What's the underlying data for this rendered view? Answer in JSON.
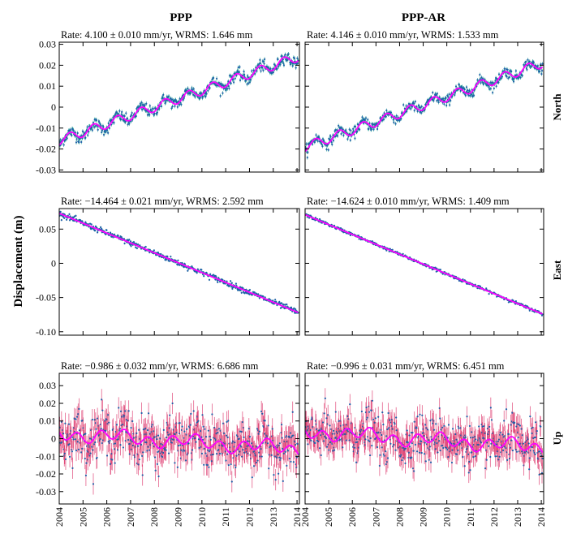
{
  "column_titles": [
    "PPP",
    "PPP-AR"
  ],
  "ylabel": "Displacement (m)",
  "row_labels": [
    "North",
    "East",
    "Up"
  ],
  "x_ticks": [
    "2004",
    "2005",
    "2006",
    "2007",
    "2008",
    "2009",
    "2010",
    "2011",
    "2012",
    "2013",
    "2014"
  ],
  "colors": {
    "points": "#1f5fa8",
    "errorbars": "#2aa198",
    "fit": "#ff00ff"
  },
  "chart_data": [
    {
      "type": "scatter",
      "row": "North",
      "column": "PPP",
      "title": "Rate: 4.100 ± 0.010 mm/yr, WRMS: 1.646 mm",
      "xlim": [
        2004,
        2014.1
      ],
      "ylim": [
        -0.031,
        0.031
      ],
      "yticks": [
        0.03,
        0.02,
        0.01,
        0,
        -0.01,
        -0.02,
        -0.03
      ],
      "ytick_labels": [
        "0.03",
        "0.02",
        "0.01",
        "0",
        "-0.01",
        "-0.02",
        "-0.03"
      ],
      "rate_mm_yr": 4.1,
      "wrms_mm": 1.646,
      "start_value": -0.016,
      "end_value": 0.024
    },
    {
      "type": "scatter",
      "row": "North",
      "column": "PPP-AR",
      "title": "Rate: 4.146 ± 0.010 mm/yr, WRMS: 1.533 mm",
      "xlim": [
        2004,
        2014.1
      ],
      "ylim": [
        -0.031,
        0.031
      ],
      "yticks": [
        0.03,
        0.02,
        0.01,
        0,
        -0.01,
        -0.02,
        -0.03
      ],
      "rate_mm_yr": 4.146,
      "wrms_mm": 1.533,
      "start_value": -0.019,
      "end_value": 0.021
    },
    {
      "type": "scatter",
      "row": "East",
      "column": "PPP",
      "title": "Rate: −14.464 ± 0.021 mm/yr, WRMS: 2.592 mm",
      "xlim": [
        2004,
        2014.1
      ],
      "ylim": [
        -0.105,
        0.08
      ],
      "yticks": [
        0.05,
        0,
        -0.05,
        -0.1
      ],
      "ytick_labels": [
        "0.05",
        "0",
        "-0.05",
        "-0.10"
      ],
      "rate_mm_yr": -14.464,
      "wrms_mm": 2.592,
      "start_value": 0.073,
      "end_value": -0.072
    },
    {
      "type": "scatter",
      "row": "East",
      "column": "PPP-AR",
      "title": "Rate: −14.624 ± 0.010 mm/yr, WRMS: 1.409 mm",
      "xlim": [
        2004,
        2014.1
      ],
      "ylim": [
        -0.105,
        0.08
      ],
      "yticks": [
        0.05,
        0,
        -0.05,
        -0.1
      ],
      "rate_mm_yr": -14.624,
      "wrms_mm": 1.409,
      "start_value": 0.071,
      "end_value": -0.074
    },
    {
      "type": "scatter",
      "row": "Up",
      "column": "PPP",
      "title": "Rate: −0.986 ± 0.032 mm/yr, WRMS: 6.686 mm",
      "xlim": [
        2004,
        2014.1
      ],
      "ylim": [
        -0.037,
        0.037
      ],
      "yticks": [
        0.03,
        0.02,
        0.01,
        0,
        -0.01,
        -0.02,
        -0.03
      ],
      "ytick_labels": [
        "0.03",
        "0.02",
        "0.01",
        "0",
        "-0.01",
        "-0.02",
        "-0.03"
      ],
      "rate_mm_yr": -0.986,
      "wrms_mm": 6.686,
      "start_value": 0.003,
      "end_value": -0.006
    },
    {
      "type": "scatter",
      "row": "Up",
      "column": "PPP-AR",
      "title": "Rate: −0.996 ± 0.031 mm/yr, WRMS: 6.451 mm",
      "xlim": [
        2004,
        2014.1
      ],
      "ylim": [
        -0.037,
        0.037
      ],
      "yticks": [
        0.03,
        0.02,
        0.01,
        0,
        -0.01,
        -0.02,
        -0.03
      ],
      "rate_mm_yr": -0.996,
      "wrms_mm": 6.451,
      "start_value": 0.004,
      "end_value": -0.005
    }
  ]
}
